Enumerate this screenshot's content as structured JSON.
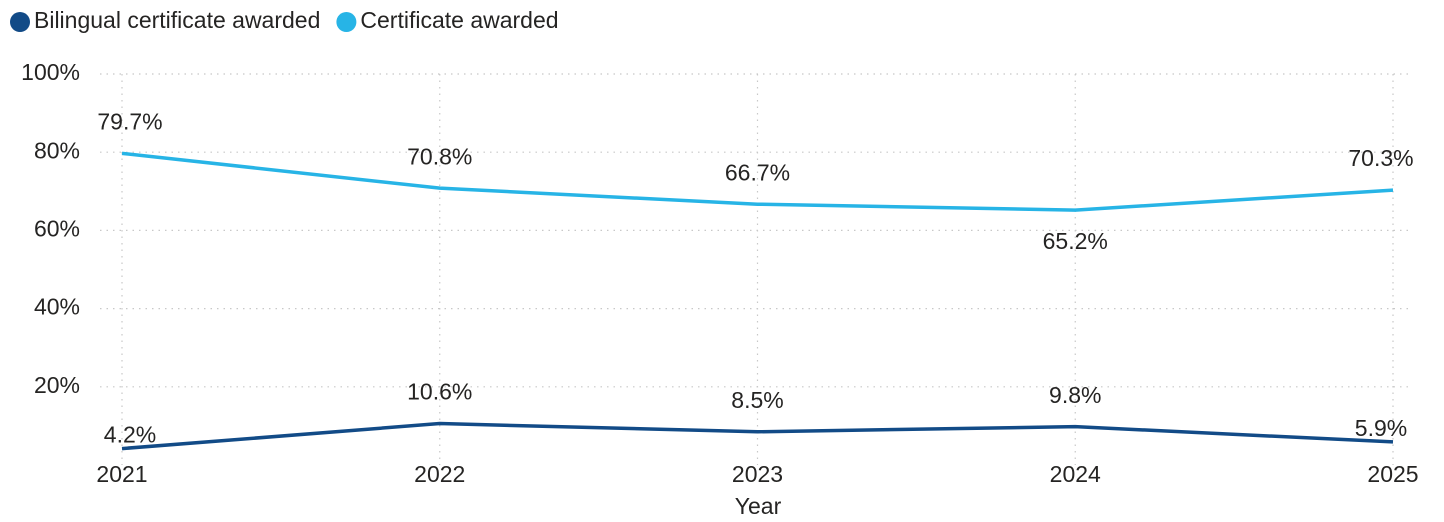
{
  "chart_data": {
    "type": "line",
    "x_label": "Year",
    "categories": [
      "2021",
      "2022",
      "2023",
      "2024",
      "2025"
    ],
    "series": [
      {
        "name": "Bilingual certificate awarded",
        "color": "#124b87",
        "values": [
          4.2,
          10.6,
          8.5,
          9.8,
          5.9
        ],
        "value_labels": [
          "4.2%",
          "10.6%",
          "8.5%",
          "9.8%",
          "5.9%"
        ]
      },
      {
        "name": "Certificate awarded",
        "color": "#27b4e6",
        "values": [
          79.7,
          70.8,
          66.7,
          65.2,
          70.3
        ],
        "value_labels": [
          "79.7%",
          "70.8%",
          "66.7%",
          "65.2%",
          "70.3%"
        ]
      }
    ],
    "ylim": [
      0,
      100
    ],
    "yticks": [
      {
        "value": 20,
        "label": "20%"
      },
      {
        "value": 40,
        "label": "40%"
      },
      {
        "value": 60,
        "label": "60%"
      },
      {
        "value": 80,
        "label": "80%"
      },
      {
        "value": 100,
        "label": "100%"
      }
    ],
    "grid": true
  }
}
